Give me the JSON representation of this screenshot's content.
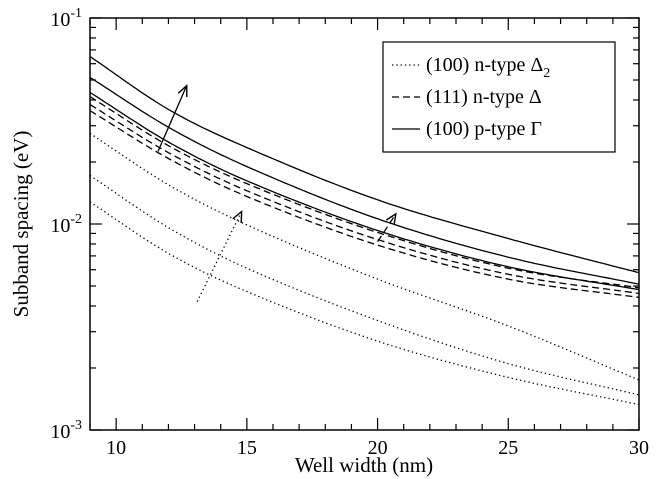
{
  "chart_data": {
    "type": "line",
    "xlabel": "Well width (nm)",
    "ylabel": "Subband spacing (eV)",
    "xlim": [
      9,
      30
    ],
    "ylim": [
      0.001,
      0.1
    ],
    "yscale": "log",
    "x_ticks": [
      10,
      15,
      20,
      25,
      30
    ],
    "x_tick_labels": [
      "10",
      "15",
      "20",
      "25",
      "30"
    ],
    "y_ticks": [
      0.001,
      0.01,
      0.1
    ],
    "y_tick_labels": [
      {
        "base": "10",
        "exp": "-3"
      },
      {
        "base": "10",
        "exp": "-2"
      },
      {
        "base": "10",
        "exp": "-1"
      }
    ],
    "grid": false,
    "legend_position": "top-right",
    "legend": [
      {
        "style": "dotted",
        "label": "(100) n-type Δ",
        "subscript": "2"
      },
      {
        "style": "dashed",
        "label": "(111) n-type Δ",
        "subscript": ""
      },
      {
        "style": "solid",
        "label": "(100) p-type Γ",
        "subscript": ""
      }
    ],
    "series": [
      {
        "style": "solid",
        "x": [
          9,
          12,
          15,
          20,
          25,
          30
        ],
        "y": [
          0.065,
          0.036,
          0.0235,
          0.0131,
          0.0085,
          0.0058
        ]
      },
      {
        "style": "solid",
        "x": [
          9,
          12,
          15,
          20,
          25,
          30
        ],
        "y": [
          0.0515,
          0.0295,
          0.019,
          0.0106,
          0.0069,
          0.0051
        ]
      },
      {
        "style": "solid",
        "x": [
          9,
          12,
          15,
          20,
          25,
          30
        ],
        "y": [
          0.0435,
          0.025,
          0.0162,
          0.0093,
          0.0062,
          0.0048
        ]
      },
      {
        "style": "dashed",
        "x": [
          9,
          12,
          15,
          20,
          25,
          30
        ],
        "y": [
          0.0415,
          0.024,
          0.0157,
          0.0091,
          0.0061,
          0.0049
        ]
      },
      {
        "style": "dashed",
        "x": [
          9,
          12,
          15,
          20,
          25,
          30
        ],
        "y": [
          0.038,
          0.0222,
          0.0145,
          0.0084,
          0.0057,
          0.0046
        ]
      },
      {
        "style": "dashed",
        "x": [
          9,
          12,
          15,
          20,
          25,
          30
        ],
        "y": [
          0.0355,
          0.0208,
          0.0136,
          0.0079,
          0.0054,
          0.0044
        ]
      },
      {
        "style": "dotted",
        "x": [
          9,
          12,
          15,
          20,
          25,
          30
        ],
        "y": [
          0.0275,
          0.0155,
          0.0099,
          0.0054,
          0.0032,
          0.00175
        ]
      },
      {
        "style": "dotted",
        "x": [
          9,
          12,
          15,
          20,
          25,
          30
        ],
        "y": [
          0.0172,
          0.0096,
          0.0061,
          0.0034,
          0.0021,
          0.00148
        ]
      },
      {
        "style": "dotted",
        "x": [
          9,
          12,
          15,
          20,
          25,
          30
        ],
        "y": [
          0.0128,
          0.0072,
          0.0047,
          0.0027,
          0.0018,
          0.00133
        ]
      }
    ],
    "annotations": [
      {
        "type": "arrow",
        "style": "solid",
        "from": [
          11.6,
          0.0225
        ],
        "to": [
          12.7,
          0.047
        ]
      },
      {
        "type": "arrow",
        "style": "dotted",
        "from": [
          13.1,
          0.0042
        ],
        "to": [
          14.8,
          0.0115
        ]
      },
      {
        "type": "arrow",
        "style": "dashed",
        "from": [
          20.0,
          0.0082
        ],
        "to": [
          20.7,
          0.0112
        ]
      }
    ]
  }
}
